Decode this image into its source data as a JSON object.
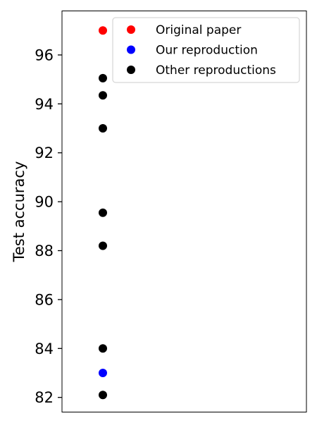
{
  "chart_data": {
    "type": "scatter",
    "title": "",
    "xlabel": "",
    "ylabel": "Test accuracy",
    "ylim": [
      81.4,
      97.8
    ],
    "y_ticks": [
      82,
      84,
      86,
      88,
      90,
      92,
      94,
      96
    ],
    "grid": false,
    "legend_position": "top-right",
    "series": [
      {
        "name": "Original paper",
        "color": "#ff0000",
        "x": [
          0
        ],
        "values": [
          97.0
        ]
      },
      {
        "name": "Our reproduction",
        "color": "#0000ff",
        "x": [
          0
        ],
        "values": [
          83.0
        ]
      },
      {
        "name": "Other reproductions",
        "color": "#000000",
        "x": [
          0,
          0,
          0,
          0,
          0,
          0,
          0
        ],
        "values": [
          95.05,
          94.35,
          93.0,
          89.55,
          88.2,
          84.0,
          82.1
        ]
      }
    ]
  }
}
